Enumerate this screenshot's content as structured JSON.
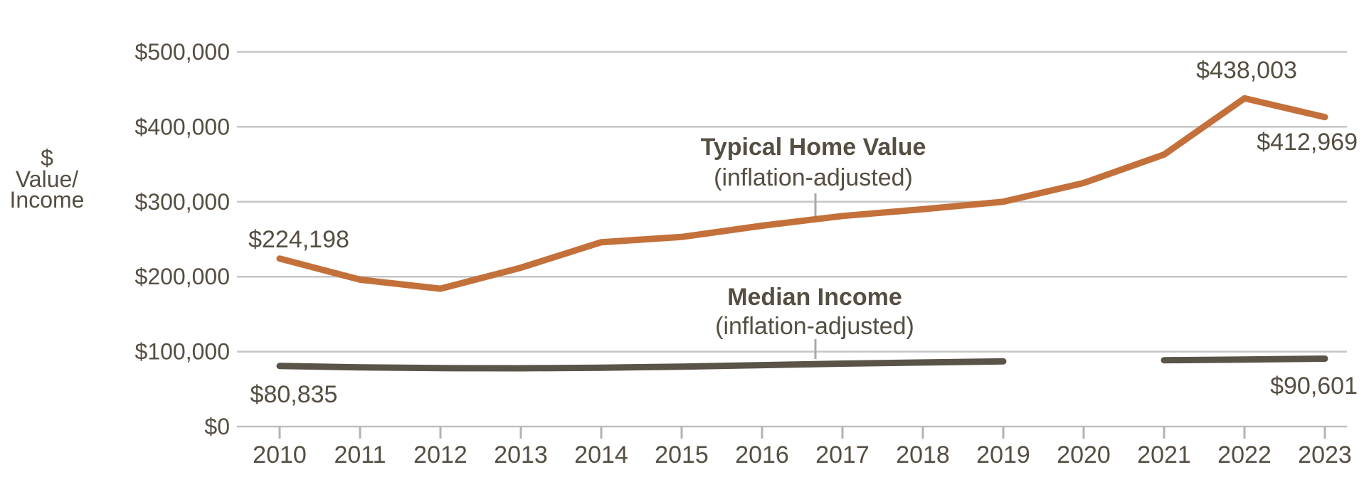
{
  "chart_data": {
    "type": "line",
    "title": "",
    "y_axis_title_lines": [
      "$",
      "Value/",
      "Income"
    ],
    "grid": true,
    "ylim": [
      0,
      500000
    ],
    "x": [
      2010,
      2011,
      2012,
      2013,
      2014,
      2015,
      2016,
      2017,
      2018,
      2019,
      2020,
      2021,
      2022,
      2023
    ],
    "y_ticks": [
      {
        "label": "$0",
        "value": 0
      },
      {
        "label": "$100,000",
        "value": 100000
      },
      {
        "label": "$200,000",
        "value": 200000
      },
      {
        "label": "$300,000",
        "value": 300000
      },
      {
        "label": "$400,000",
        "value": 400000
      },
      {
        "label": "$500,000",
        "value": 500000
      }
    ],
    "series": [
      {
        "name": "Typical Home Value",
        "subtitle": "(inflation-adjusted)",
        "color": "#c3703a",
        "values": [
          224198,
          196000,
          184000,
          212000,
          246000,
          253000,
          268000,
          281000,
          290000,
          300000,
          325000,
          363000,
          438003,
          412969
        ]
      },
      {
        "name": "Median Income",
        "subtitle": "(inflation-adjusted)",
        "color": "#5a5347",
        "values": [
          80835,
          79000,
          78000,
          77800,
          78500,
          80000,
          82000,
          84000,
          85500,
          87000,
          null,
          88500,
          89500,
          90601
        ]
      }
    ],
    "point_labels": [
      {
        "series": 0,
        "year": 2010,
        "text": "$224,198"
      },
      {
        "series": 0,
        "year": 2022,
        "text": "$438,003"
      },
      {
        "series": 0,
        "year": 2023,
        "text": "$412,969"
      },
      {
        "series": 1,
        "year": 2010,
        "text": "$80,835"
      },
      {
        "series": 1,
        "year": 2023,
        "text": "$90,601"
      }
    ],
    "colors": {
      "text": "#554e42",
      "gridline": "#c6c6c6",
      "axis_line": "#c0c0c0",
      "tick": "#b3b3b3",
      "leader_line": "#a9a9a9",
      "home_value_line": "#c3703a",
      "income_line": "#5a5347"
    }
  }
}
